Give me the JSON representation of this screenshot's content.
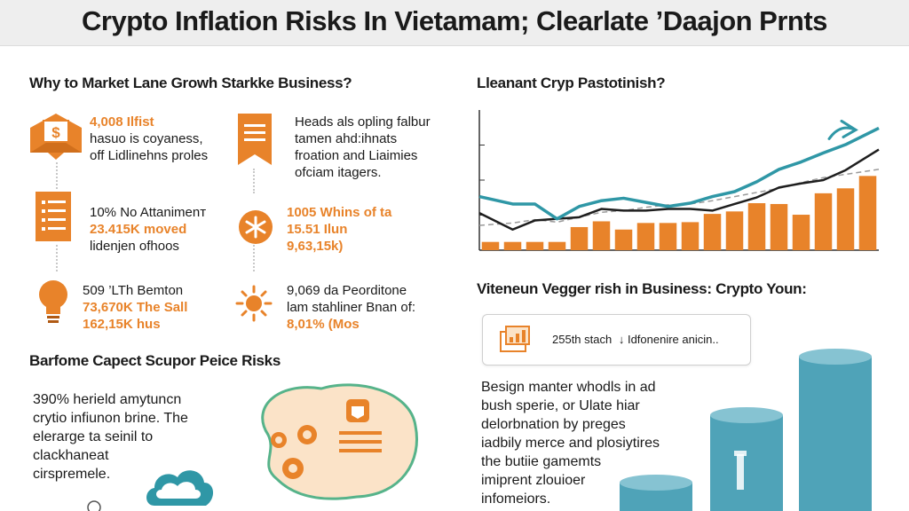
{
  "title": "Crypto Inflation Risks  In Vietamam; Clearlate ’Daajon Prnts",
  "left_top": {
    "heading": "Why to Market Lane Growh Starkke Business?",
    "items": [
      {
        "icon": "dollar-envelope-icon",
        "lines": [
          "4,008 Ilfist",
          "hasuo is coyaness,",
          "off Lidlinehns proles"
        ]
      },
      {
        "icon": "bookmark-banner-icon",
        "lines": [
          "Heads als opling falbur",
          "tamen ahd:ihnats",
          "froation and Liaimies",
          "ofciam itagers."
        ]
      },
      {
        "icon": "list-banner-icon",
        "lines": [
          "10% No Attanimenт",
          "23.415K moved",
          "lidenjen ofhoos"
        ]
      },
      {
        "icon": "asterisk-badge-icon",
        "lines": [
          "1005 Whins of ta",
          "15.51 Ilun",
          "9,63,15k)"
        ]
      },
      {
        "icon": "lightbulb-icon",
        "lines": [
          "509 ’LTh Bemton",
          "73,670K The Sall",
          "162,15K hus"
        ]
      },
      {
        "icon": "sun-icon",
        "lines": [
          "9,069 da Peorditone",
          "lam stahliner Bnan of:",
          "8,01% (Mos"
        ]
      }
    ]
  },
  "left_bottom": {
    "heading": "Barfome Capect Scupor Peice Risks",
    "lines": [
      "390% herield amytuncn",
      "crytio infiunon brine. The",
      "elerarge ta seinil to",
      "clackhaneat",
      "cirspremele."
    ]
  },
  "right_chart": {
    "heading": "Lleanant Cryp Pastotinish?"
  },
  "right_bottom": {
    "heading": "Viteneun Vegger rish in Business: Crypto Youn:",
    "callout_text": "255th stach",
    "callout_text2": "↓ Idfonenire anicin..",
    "lines": [
      "Besign manter whodls in ad",
      "bush sperie, or Ulate hiar",
      "delorbnation by preges",
      "iadbily merce and plosiytires",
      "the butiie gamemts",
      "imiprent zlouioer",
      "infomeiors."
    ]
  },
  "colors": {
    "orange": "#e8832a",
    "teal": "#2f97a6",
    "dark_line": "#1e1e1e",
    "dashed_line": "#9a9a9a",
    "cylinder": "#4fa3b8"
  },
  "chart_data": {
    "type": "bar",
    "categories": [
      "1",
      "2",
      "3",
      "4",
      "5",
      "6",
      "7",
      "8",
      "9",
      "10",
      "11",
      "12",
      "13",
      "14",
      "15",
      "16",
      "17",
      "18"
    ],
    "values": [
      10,
      10,
      10,
      10,
      28,
      35,
      25,
      33,
      33,
      34,
      44,
      47,
      57,
      56,
      43,
      69,
      75,
      90
    ],
    "series": [
      {
        "values": [
          65,
          56,
          56,
          38,
          53,
          60,
          63,
          58,
          53,
          57,
          65,
          71,
          83,
          98,
          107,
          118,
          128,
          148
        ]
      },
      {
        "values": [
          45,
          25,
          36,
          38,
          40,
          50,
          48,
          48,
          50,
          50,
          48,
          56,
          64,
          76,
          81,
          85,
          97,
          122
        ]
      },
      {
        "values": [
          30,
          33,
          37,
          34,
          40,
          46,
          48,
          52,
          55,
          56,
          60,
          65,
          70,
          75,
          82,
          88,
          92,
          98
        ]
      }
    ],
    "ylim": [
      0,
      170
    ],
    "grid": false
  }
}
